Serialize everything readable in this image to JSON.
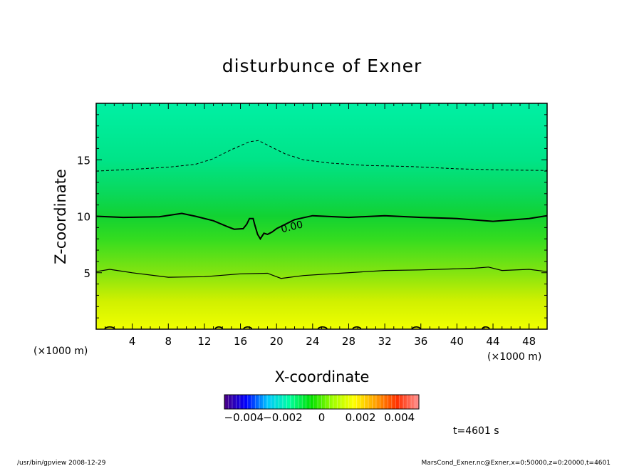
{
  "chart_data": {
    "type": "heatmap",
    "title": "disturbunce of Exner",
    "xlabel": "X-coordinate",
    "ylabel": "Z-coordinate",
    "x_unit": "(×1000 m)",
    "y_unit": "(×1000 m)",
    "xlim": [
      0,
      50
    ],
    "ylim": [
      0,
      20
    ],
    "x_ticks": [
      4,
      8,
      12,
      16,
      20,
      24,
      28,
      32,
      36,
      40,
      44,
      48
    ],
    "y_ticks": [
      5,
      10,
      15
    ],
    "colorbar": {
      "min": -0.005,
      "max": 0.005,
      "tick_values": [
        -0.004,
        -0.002,
        0,
        0.002,
        0.004
      ],
      "tick_labels": [
        "−0.004",
        "−0.002",
        "0",
        "0.002",
        "0.004"
      ],
      "colors": [
        "#4b0082",
        "#0000ff",
        "#00c8ff",
        "#00ffa0",
        "#00e000",
        "#a0ff00",
        "#ffff00",
        "#ffa000",
        "#ff3000",
        "#ff9090"
      ]
    },
    "field_gradient": [
      {
        "z": 20,
        "color": "#00f0a4"
      },
      {
        "z": 15,
        "color": "#00e488"
      },
      {
        "z": 12,
        "color": "#0ad85a"
      },
      {
        "z": 10,
        "color": "#12d232"
      },
      {
        "z": 8,
        "color": "#34dc20"
      },
      {
        "z": 5,
        "color": "#84e410"
      },
      {
        "z": 2.5,
        "color": "#d0f000"
      },
      {
        "z": 0,
        "color": "#f0ff00"
      }
    ],
    "contour_label": "0.00",
    "contours": [
      {
        "level": "negative",
        "style": "dashed",
        "points": [
          [
            0,
            14.0
          ],
          [
            4,
            14.15
          ],
          [
            8,
            14.35
          ],
          [
            11,
            14.6
          ],
          [
            13,
            15.1
          ],
          [
            15,
            15.9
          ],
          [
            17,
            16.6
          ],
          [
            18,
            16.7
          ],
          [
            19,
            16.3
          ],
          [
            21,
            15.5
          ],
          [
            23,
            15.0
          ],
          [
            26,
            14.7
          ],
          [
            30,
            14.5
          ],
          [
            35,
            14.4
          ],
          [
            40,
            14.2
          ],
          [
            45,
            14.1
          ],
          [
            50,
            14.05
          ]
        ]
      },
      {
        "level": "zero",
        "style": "solid-thick",
        "points": [
          [
            0,
            10.0
          ],
          [
            3,
            9.9
          ],
          [
            7,
            9.95
          ],
          [
            9.5,
            10.25
          ],
          [
            11,
            10.0
          ],
          [
            13,
            9.6
          ],
          [
            14.5,
            9.1
          ],
          [
            15.3,
            8.85
          ],
          [
            16.3,
            8.9
          ],
          [
            16.7,
            9.3
          ],
          [
            17.0,
            9.8
          ],
          [
            17.4,
            9.8
          ],
          [
            17.6,
            9.2
          ],
          [
            17.9,
            8.4
          ],
          [
            18.2,
            8.0
          ],
          [
            18.6,
            8.5
          ],
          [
            19.0,
            8.4
          ],
          [
            19.5,
            8.6
          ],
          [
            20,
            8.9
          ],
          [
            22,
            9.7
          ],
          [
            24,
            10.05
          ],
          [
            28,
            9.9
          ],
          [
            32,
            10.05
          ],
          [
            36,
            9.9
          ],
          [
            40,
            9.8
          ],
          [
            44,
            9.55
          ],
          [
            48,
            9.8
          ],
          [
            50,
            10.05
          ]
        ]
      },
      {
        "level": "positive",
        "style": "solid",
        "points": [
          [
            0,
            5.1
          ],
          [
            1.5,
            5.3
          ],
          [
            4,
            5.0
          ],
          [
            8,
            4.6
          ],
          [
            12,
            4.65
          ],
          [
            16,
            4.9
          ],
          [
            19,
            4.95
          ],
          [
            20.5,
            4.5
          ],
          [
            23,
            4.75
          ],
          [
            27,
            4.95
          ],
          [
            32,
            5.2
          ],
          [
            36,
            5.25
          ],
          [
            40,
            5.35
          ],
          [
            42,
            5.4
          ],
          [
            43.5,
            5.5
          ],
          [
            45,
            5.2
          ],
          [
            48,
            5.3
          ],
          [
            50,
            5.1
          ]
        ]
      }
    ],
    "bottom_blobs": [
      {
        "x": 1.5,
        "w": 1.1
      },
      {
        "x": 13.6,
        "w": 0.8
      },
      {
        "x": 16.8,
        "w": 0.9
      },
      {
        "x": 25.1,
        "w": 1.0
      },
      {
        "x": 28.9,
        "w": 0.9
      },
      {
        "x": 35.5,
        "w": 0.9
      },
      {
        "x": 43.2,
        "w": 0.8
      }
    ]
  },
  "annotations": {
    "time_label": "t=4601 s",
    "program_label": "/usr/bin/gpview   2008-12-29",
    "source_label": "MarsCond_Exner.nc@Exner,x=0:50000,z=0:20000,t=4601"
  }
}
